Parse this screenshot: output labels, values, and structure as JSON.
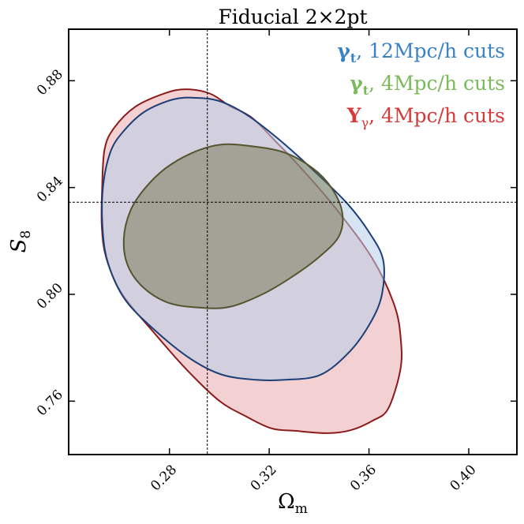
{
  "chart_data": {
    "type": "contour",
    "title": "Fiducial 2×2pt",
    "xlabel": "Ω",
    "xlabel_sub": "m",
    "ylabel": "S",
    "ylabel_sub": "8",
    "xlim": [
      0.2396,
      0.4193
    ],
    "ylim": [
      0.74,
      0.8993
    ],
    "xticks": [
      0.28,
      0.32,
      0.36,
      0.4
    ],
    "xtick_labels": [
      "0.28",
      "0.32",
      "0.36",
      "0.40"
    ],
    "yticks": [
      0.76,
      0.8,
      0.84,
      0.88
    ],
    "ytick_labels": [
      "0.76",
      "0.80",
      "0.84",
      "0.88"
    ],
    "reference": {
      "x": 0.2952,
      "y": 0.8345
    },
    "legend_position": "top-right",
    "series": [
      {
        "name": "red",
        "legend_symbol": "Y",
        "legend_sub": "γ",
        "legend_text": ", 4Mpc/h cuts",
        "color": "#d63b3b",
        "fill": "#e8a3a6",
        "edge": "#8b1b1b",
        "points": [
          [
            0.3303,
            0.7489
          ],
          [
            0.3209,
            0.7498
          ],
          [
            0.3107,
            0.7543
          ],
          [
            0.2999,
            0.7602
          ],
          [
            0.2868,
            0.7719
          ],
          [
            0.2734,
            0.7861
          ],
          [
            0.2609,
            0.8003
          ],
          [
            0.2547,
            0.8136
          ],
          [
            0.2529,
            0.8254
          ],
          [
            0.253,
            0.8396
          ],
          [
            0.254,
            0.8543
          ],
          [
            0.2578,
            0.8623
          ],
          [
            0.2664,
            0.8703
          ],
          [
            0.2782,
            0.8753
          ],
          [
            0.2867,
            0.8768
          ],
          [
            0.2962,
            0.8752
          ],
          [
            0.3041,
            0.8706
          ],
          [
            0.313,
            0.8662
          ],
          [
            0.3231,
            0.8568
          ],
          [
            0.3318,
            0.8483
          ],
          [
            0.3459,
            0.8331
          ],
          [
            0.3613,
            0.8135
          ],
          [
            0.3702,
            0.7959
          ],
          [
            0.3728,
            0.7827
          ],
          [
            0.3725,
            0.7714
          ],
          [
            0.3677,
            0.7572
          ],
          [
            0.3615,
            0.7527
          ],
          [
            0.3526,
            0.7491
          ],
          [
            0.3431,
            0.748
          ]
        ]
      },
      {
        "name": "blue",
        "legend_symbol": "γ",
        "legend_sub": "t",
        "legend_text": ", 12Mpc/h cuts",
        "color": "#3a82c4",
        "fill": "#b7cdea",
        "edge": "#1c3f78",
        "points": [
          [
            0.3263,
            0.768
          ],
          [
            0.3146,
            0.768
          ],
          [
            0.3008,
            0.77
          ],
          [
            0.2879,
            0.7762
          ],
          [
            0.2733,
            0.7873
          ],
          [
            0.2621,
            0.7982
          ],
          [
            0.2556,
            0.811
          ],
          [
            0.2533,
            0.8233
          ],
          [
            0.2533,
            0.8395
          ],
          [
            0.2563,
            0.8532
          ],
          [
            0.2616,
            0.8611
          ],
          [
            0.27,
            0.8684
          ],
          [
            0.2815,
            0.873
          ],
          [
            0.2906,
            0.8736
          ],
          [
            0.3006,
            0.8722
          ],
          [
            0.3119,
            0.8667
          ],
          [
            0.3252,
            0.857
          ],
          [
            0.3396,
            0.8448
          ],
          [
            0.3517,
            0.8336
          ],
          [
            0.3603,
            0.8229
          ],
          [
            0.3657,
            0.8128
          ],
          [
            0.3652,
            0.8
          ],
          [
            0.3607,
            0.7896
          ],
          [
            0.3521,
            0.7784
          ],
          [
            0.3404,
            0.7698
          ]
        ]
      },
      {
        "name": "green",
        "legend_symbol": "γ",
        "legend_sub": "t",
        "legend_text": ", 4Mpc/h cuts",
        "color": "#7aba5a",
        "fill": "#6a6a3e",
        "edge": "#55542e",
        "points": [
          [
            0.2925,
            0.795
          ],
          [
            0.2797,
            0.7968
          ],
          [
            0.2696,
            0.8025
          ],
          [
            0.2633,
            0.8108
          ],
          [
            0.2617,
            0.8208
          ],
          [
            0.2643,
            0.8312
          ],
          [
            0.27,
            0.8395
          ],
          [
            0.2783,
            0.8471
          ],
          [
            0.2887,
            0.8528
          ],
          [
            0.3,
            0.856
          ],
          [
            0.312,
            0.8556
          ],
          [
            0.3261,
            0.8531
          ],
          [
            0.3378,
            0.847
          ],
          [
            0.3451,
            0.8397
          ],
          [
            0.3493,
            0.8306
          ],
          [
            0.348,
            0.8218
          ],
          [
            0.3404,
            0.8143
          ],
          [
            0.3294,
            0.8067
          ],
          [
            0.3172,
            0.8
          ],
          [
            0.3041,
            0.7953
          ]
        ]
      }
    ]
  }
}
